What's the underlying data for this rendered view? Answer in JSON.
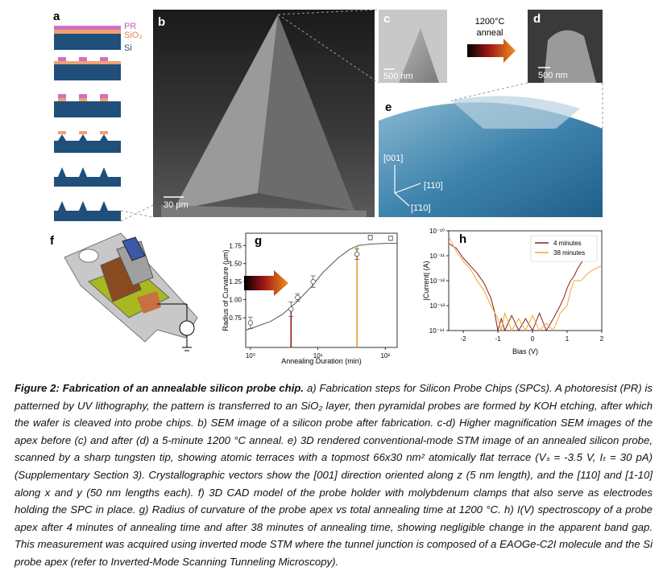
{
  "panel_labels": [
    "a",
    "b",
    "c",
    "d",
    "e",
    "f"
  ],
  "panel_a": {
    "layers": [
      "PR",
      "SiO₂",
      "Si"
    ]
  },
  "panel_b": {
    "scale_bar": "30 μm"
  },
  "panel_c": {
    "scale_bar": "500 nm"
  },
  "anneal_arrow": {
    "temperature": "1200°C",
    "label": "anneal"
  },
  "panel_d": {
    "scale_bar": "500 nm"
  },
  "panel_e": {
    "vectors": [
      "[001]",
      "[110]",
      "[1̄10]"
    ]
  },
  "chart_data": [
    {
      "type": "scatter",
      "title": "g",
      "x_label": "Annealing Duration (min)",
      "y_label": "Radius of Curvature (μm)",
      "xscale": "log",
      "xlim": [
        0.85,
        150
      ],
      "xticks": [
        {
          "value": 1,
          "label": "10⁰"
        },
        {
          "value": 10,
          "label": "10¹"
        },
        {
          "value": 100,
          "label": "10²"
        }
      ],
      "ylim": [
        0.34,
        1.92
      ],
      "yticks": [
        0.75,
        {
          "value": 1,
          "label": "1.00"
        },
        1.25,
        {
          "value": 1.5,
          "label": "1.50"
        },
        1.75
      ],
      "x": [
        1,
        4,
        5,
        8.5,
        38,
        60,
        120
      ],
      "values": [
        0.68,
        0.87,
        1.03,
        1.25,
        1.63,
        1.86,
        1.85
      ],
      "errors": [
        0.08,
        0.1,
        0.05,
        0.08,
        0.07,
        0.03,
        0.03
      ],
      "color": "#555555",
      "fit": {
        "x": [
          0.85,
          1,
          2,
          3,
          5,
          8,
          12,
          20,
          30,
          40,
          60,
          100,
          150
        ],
        "values": [
          0.58,
          0.6,
          0.7,
          0.8,
          0.98,
          1.18,
          1.38,
          1.58,
          1.7,
          1.75,
          1.77,
          1.78,
          1.78
        ],
        "color": "#555555"
      },
      "vlines": [
        {
          "x": 4,
          "color": "#8b1a1a"
        },
        {
          "x": 38,
          "color": "#e89a2c"
        }
      ]
    },
    {
      "type": "line",
      "title": "h",
      "x_label": "Bias (V)",
      "y_label": "|Current| (A)",
      "xlim": [
        -2.42,
        2
      ],
      "xticks": [
        -2,
        -1,
        0,
        1,
        2
      ],
      "yscale": "log",
      "ylim": [
        1e-14,
        1e-10
      ],
      "yticks": [
        {
          "value": 1e-10,
          "label": "10⁻¹⁰"
        },
        {
          "value": 1e-11,
          "label": "10⁻¹¹"
        },
        {
          "value": 1e-12,
          "label": "10⁻¹²"
        },
        {
          "value": 1e-13,
          "label": "10⁻¹³"
        },
        {
          "value": 1e-14,
          "label": "10⁻¹⁴"
        }
      ],
      "legend": "upper right",
      "series": [
        {
          "name": "4 minutes",
          "color": "#8b1c24",
          "x": [
            -2.4,
            -2.2,
            -2,
            -1.8,
            -1.6,
            -1.4,
            -1.2,
            -1.1,
            -1,
            -0.9,
            -0.8,
            -0.6,
            -0.4,
            -0.2,
            0,
            0.2,
            0.4,
            0.6,
            0.8,
            0.9,
            1,
            1.1,
            1.2,
            1.3,
            1.4,
            1.5
          ],
          "values": [
            3e-11,
            2e-11,
            8e-12,
            4e-12,
            2e-12,
            8e-13,
            2e-13,
            6e-14,
            1e-14,
            3e-14,
            1e-14,
            4e-14,
            1e-14,
            3e-14,
            1e-14,
            5e-14,
            1e-14,
            3e-14,
            1e-13,
            2e-13,
            5e-13,
            1e-12,
            1.5e-12,
            3e-12,
            5e-12,
            8e-12
          ]
        },
        {
          "name": "38 minutes",
          "color": "#f0a830",
          "x": [
            -2.4,
            -2.2,
            -2,
            -1.8,
            -1.6,
            -1.4,
            -1.2,
            -1,
            -0.9,
            -0.8,
            -0.6,
            -0.4,
            -0.2,
            0,
            0.2,
            0.4,
            0.6,
            0.8,
            1,
            1.1,
            1.2,
            1.4,
            1.6,
            1.8,
            2
          ],
          "values": [
            5e-11,
            1.5e-11,
            6e-12,
            3e-12,
            1e-12,
            4e-13,
            1e-13,
            3e-14,
            1e-14,
            5e-14,
            1e-14,
            3e-14,
            1e-14,
            4e-14,
            1e-14,
            2e-14,
            1e-14,
            5e-14,
            1e-13,
            4e-13,
            1e-12,
            1e-12,
            2e-12,
            3e-12,
            4e-12
          ]
        }
      ]
    }
  ],
  "caption": {
    "label": "Figure 2:",
    "title": "Fabrication of an annealable silicon probe chip.",
    "text": "a) Fabrication steps for Silicon Probe Chips (SPCs). A photoresist (PR) is patterned by UV lithography, the pattern is transferred to an SiO₂ layer, then pyramidal probes are formed by KOH etching, after which the wafer is cleaved into probe chips.  b) SEM image of a silicon probe after fabrication. c-d) Higher magnification SEM images of the apex before (c) and after (d) a 5-minute 1200 °C anneal. e) 3D rendered conventional-mode STM image of an annealed silicon probe, scanned by a sharp tungsten tip, showing atomic terraces with a topmost 66x30 nm² atomically flat terrace (Vₛ = -3.5 V, Iₜ = 30 pA) (Supplementary Section 3). Crystallographic vectors show the [001] direction oriented along z (5 nm length), and the [110] and [1-10] along x and y (50 nm lengths each). f) 3D CAD model of the probe holder with molybdenum clamps that also serve as electrodes holding the SPC in place. g) Radius of curvature of the probe apex vs total annealing time at 1200 °C. h) I(V) spectroscopy of a probe apex after 4 minutes of annealing time and after 38 minutes of annealing time, showing negligible change in the apparent band gap. This measurement was acquired using inverted mode STM where the tunnel junction is composed of a EAOGe-C2I molecule and the Si probe apex (refer to Inverted-Mode Scanning Tunneling Microscopy)."
  }
}
